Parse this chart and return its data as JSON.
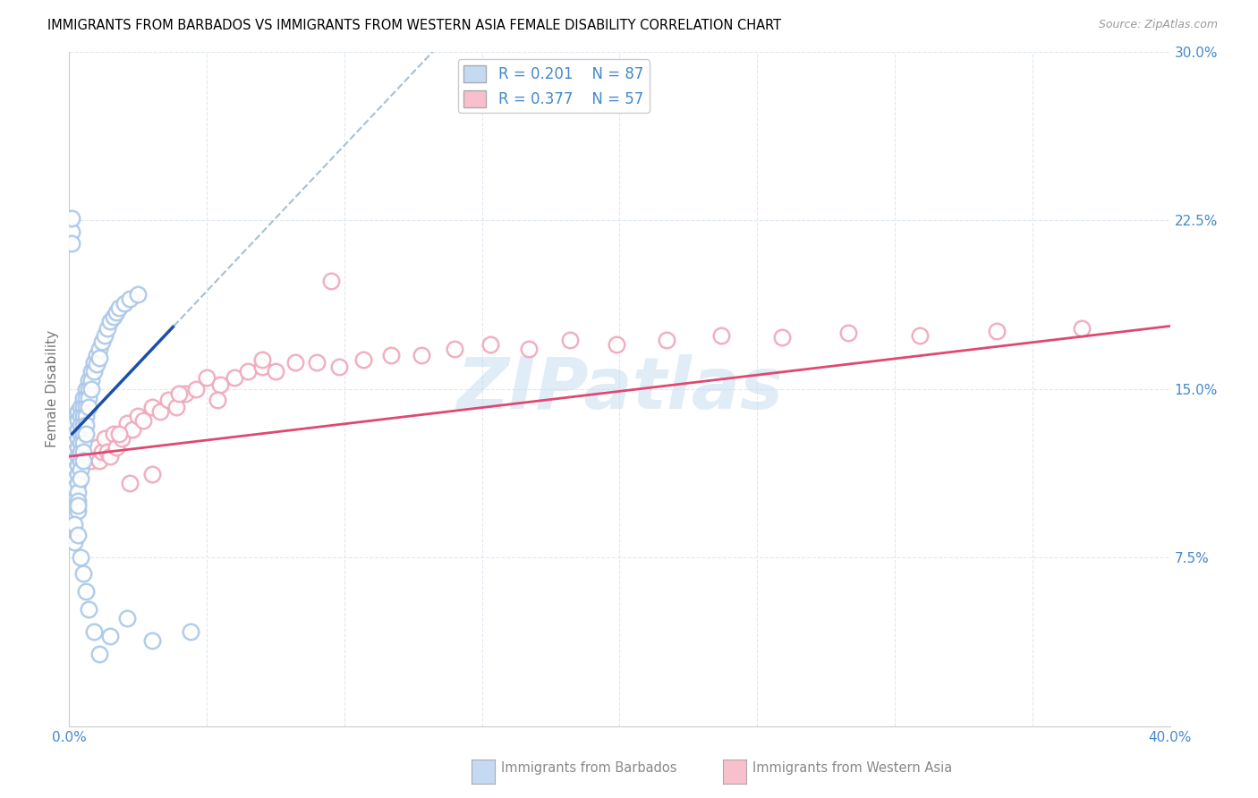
{
  "title": "IMMIGRANTS FROM BARBADOS VS IMMIGRANTS FROM WESTERN ASIA FEMALE DISABILITY CORRELATION CHART",
  "source": "Source: ZipAtlas.com",
  "ylabel": "Female Disability",
  "xlim": [
    0.0,
    0.4
  ],
  "ylim": [
    0.0,
    0.3
  ],
  "xtick_positions": [
    0.0,
    0.05,
    0.1,
    0.15,
    0.2,
    0.25,
    0.3,
    0.35,
    0.4
  ],
  "xticklabels": [
    "0.0%",
    "",
    "",
    "",
    "",
    "",
    "",
    "",
    "40.0%"
  ],
  "ytick_positions": [
    0.0,
    0.075,
    0.15,
    0.225,
    0.3
  ],
  "yticklabels_right": [
    "",
    "7.5%",
    "15.0%",
    "22.5%",
    "30.0%"
  ],
  "R_barbados": 0.201,
  "N_barbados": 87,
  "R_western_asia": 0.377,
  "N_western_asia": 57,
  "scatter_color_barbados": "#aac8e8",
  "scatter_color_western_asia": "#f0a8ba",
  "line_color_barbados": "#1a4faa",
  "line_color_western_asia": "#e04870",
  "dashed_line_color": "#a8c0d0",
  "legend_patch_barbados": "#c4daf2",
  "legend_patch_western_asia": "#f8c0cc",
  "legend_label_barbados": "Immigrants from Barbados",
  "legend_label_western_asia": "Immigrants from Western Asia",
  "watermark_text": "ZIPatlas",
  "watermark_color": "#c8ddf0",
  "tick_color": "#4488cc",
  "grid_color": "#e0e8f0",
  "title_fontsize": 10.5,
  "tick_fontsize": 11,
  "barbados_x": [
    0.001,
    0.001,
    0.001,
    0.001,
    0.002,
    0.002,
    0.002,
    0.002,
    0.002,
    0.002,
    0.002,
    0.002,
    0.003,
    0.003,
    0.003,
    0.003,
    0.003,
    0.003,
    0.003,
    0.003,
    0.003,
    0.003,
    0.003,
    0.003,
    0.004,
    0.004,
    0.004,
    0.004,
    0.004,
    0.004,
    0.004,
    0.004,
    0.004,
    0.005,
    0.005,
    0.005,
    0.005,
    0.005,
    0.005,
    0.005,
    0.005,
    0.006,
    0.006,
    0.006,
    0.006,
    0.006,
    0.006,
    0.007,
    0.007,
    0.007,
    0.007,
    0.008,
    0.008,
    0.008,
    0.009,
    0.009,
    0.01,
    0.01,
    0.011,
    0.011,
    0.012,
    0.013,
    0.014,
    0.015,
    0.016,
    0.017,
    0.018,
    0.02,
    0.022,
    0.025,
    0.002,
    0.002,
    0.003,
    0.003,
    0.004,
    0.005,
    0.006,
    0.007,
    0.009,
    0.011,
    0.015,
    0.021,
    0.03,
    0.044,
    0.001,
    0.001,
    0.001
  ],
  "barbados_y": [
    0.128,
    0.122,
    0.118,
    0.114,
    0.135,
    0.13,
    0.126,
    0.122,
    0.118,
    0.114,
    0.11,
    0.106,
    0.14,
    0.136,
    0.132,
    0.128,
    0.124,
    0.12,
    0.116,
    0.112,
    0.108,
    0.104,
    0.1,
    0.096,
    0.142,
    0.138,
    0.134,
    0.13,
    0.126,
    0.122,
    0.118,
    0.114,
    0.11,
    0.146,
    0.142,
    0.138,
    0.134,
    0.13,
    0.126,
    0.122,
    0.118,
    0.15,
    0.146,
    0.142,
    0.138,
    0.134,
    0.13,
    0.154,
    0.15,
    0.146,
    0.142,
    0.158,
    0.154,
    0.15,
    0.162,
    0.158,
    0.165,
    0.161,
    0.168,
    0.164,
    0.171,
    0.174,
    0.177,
    0.18,
    0.182,
    0.184,
    0.186,
    0.188,
    0.19,
    0.192,
    0.09,
    0.082,
    0.098,
    0.085,
    0.075,
    0.068,
    0.06,
    0.052,
    0.042,
    0.032,
    0.04,
    0.048,
    0.038,
    0.042,
    0.22,
    0.215,
    0.226
  ],
  "western_asia_x": [
    0.003,
    0.004,
    0.005,
    0.006,
    0.007,
    0.008,
    0.009,
    0.01,
    0.011,
    0.012,
    0.013,
    0.014,
    0.015,
    0.016,
    0.017,
    0.019,
    0.021,
    0.023,
    0.025,
    0.027,
    0.03,
    0.033,
    0.036,
    0.039,
    0.042,
    0.046,
    0.05,
    0.055,
    0.06,
    0.065,
    0.07,
    0.075,
    0.082,
    0.09,
    0.098,
    0.107,
    0.117,
    0.128,
    0.14,
    0.153,
    0.167,
    0.182,
    0.199,
    0.217,
    0.237,
    0.259,
    0.283,
    0.309,
    0.337,
    0.368,
    0.03,
    0.018,
    0.04,
    0.054,
    0.07,
    0.095,
    0.022
  ],
  "western_asia_y": [
    0.12,
    0.122,
    0.124,
    0.12,
    0.122,
    0.118,
    0.12,
    0.124,
    0.118,
    0.122,
    0.128,
    0.122,
    0.12,
    0.13,
    0.124,
    0.128,
    0.135,
    0.132,
    0.138,
    0.136,
    0.142,
    0.14,
    0.145,
    0.142,
    0.148,
    0.15,
    0.155,
    0.152,
    0.155,
    0.158,
    0.16,
    0.158,
    0.162,
    0.162,
    0.16,
    0.163,
    0.165,
    0.165,
    0.168,
    0.17,
    0.168,
    0.172,
    0.17,
    0.172,
    0.174,
    0.173,
    0.175,
    0.174,
    0.176,
    0.177,
    0.112,
    0.13,
    0.148,
    0.145,
    0.163,
    0.198,
    0.108
  ],
  "blue_line_x": [
    0.001,
    0.038
  ],
  "blue_line_y": [
    0.13,
    0.178
  ],
  "dashed_line_x": [
    0.038,
    0.3
  ],
  "dashed_line_y_start": 0.178,
  "dashed_line_slope": 1.26,
  "pink_line_x": [
    0.0,
    0.4
  ],
  "pink_line_y": [
    0.12,
    0.178
  ]
}
